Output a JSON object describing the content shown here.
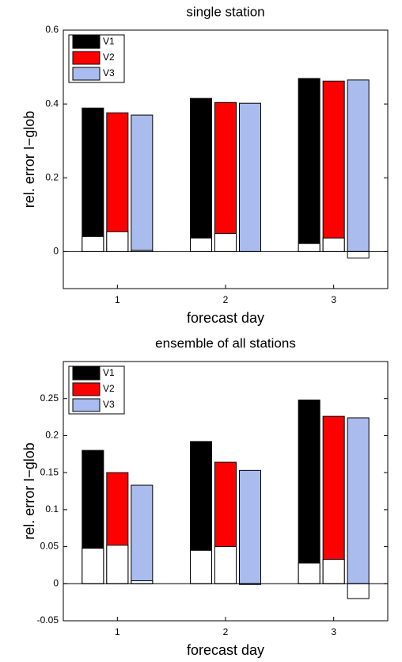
{
  "charts": [
    {
      "type": "bar",
      "title": "single station",
      "x_label": "forecast day",
      "y_label": "rel. error I−glob",
      "categories": [
        "1",
        "2",
        "3"
      ],
      "ylim": [
        -0.1,
        0.6
      ],
      "yticks": [
        0,
        0.2,
        0.4,
        0.6
      ],
      "inner_color": "#ffffff",
      "series": [
        {
          "name": "V1",
          "color": "#000000",
          "values": [
            0.389,
            0.415,
            0.469
          ],
          "inner_values": [
            0.041,
            0.037,
            0.022
          ]
        },
        {
          "name": "V2",
          "color": "#ff0000",
          "values": [
            0.376,
            0.404,
            0.462
          ],
          "inner_values": [
            0.054,
            0.049,
            0.037
          ]
        },
        {
          "name": "V3",
          "color": "#aabbee",
          "values": [
            0.37,
            0.402,
            0.465
          ],
          "inner_values": [
            0.004,
            0,
            -0.017
          ]
        }
      ]
    },
    {
      "type": "bar",
      "title": "ensemble of all stations",
      "x_label": "forecast day",
      "y_label": "rel. error I−glob",
      "categories": [
        "1",
        "2",
        "3"
      ],
      "ylim": [
        -0.05,
        0.3
      ],
      "yticks": [
        -0.05,
        0,
        0.05,
        0.1,
        0.15,
        0.2,
        0.25
      ],
      "inner_color": "#ffffff",
      "series": [
        {
          "name": "V1",
          "color": "#000000",
          "values": [
            0.18,
            0.192,
            0.248
          ],
          "inner_values": [
            0.048,
            0.045,
            0.028
          ]
        },
        {
          "name": "V2",
          "color": "#ff0000",
          "values": [
            0.15,
            0.164,
            0.226
          ],
          "inner_values": [
            0.052,
            0.05,
            0.033
          ]
        },
        {
          "name": "V3",
          "color": "#aabbee",
          "values": [
            0.133,
            0.153,
            0.224
          ],
          "inner_values": [
            0.004,
            -0.001,
            -0.02
          ]
        }
      ]
    }
  ]
}
